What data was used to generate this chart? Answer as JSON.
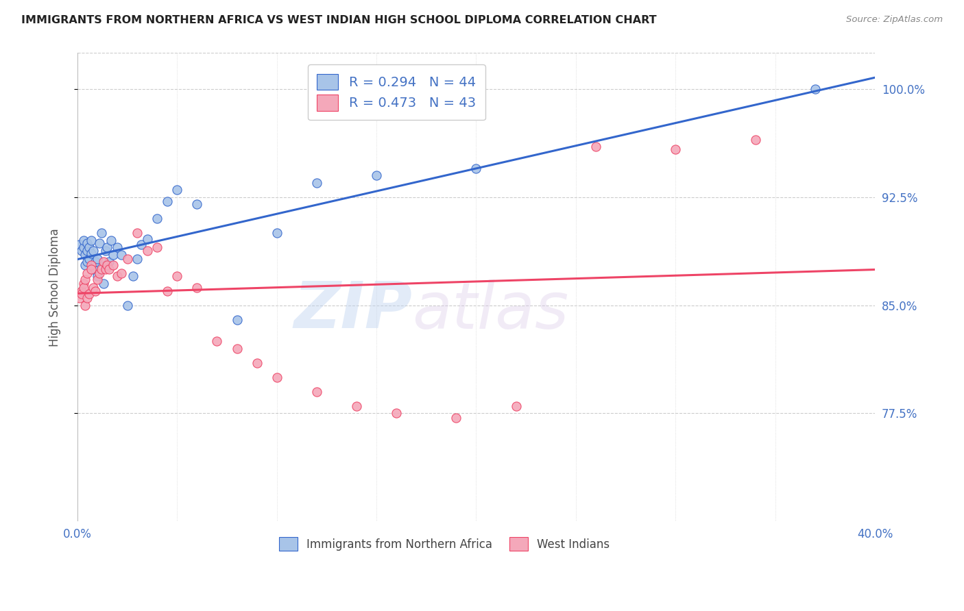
{
  "title": "IMMIGRANTS FROM NORTHERN AFRICA VS WEST INDIAN HIGH SCHOOL DIPLOMA CORRELATION CHART",
  "source": "Source: ZipAtlas.com",
  "ylabel": "High School Diploma",
  "xlim": [
    0.0,
    0.4
  ],
  "ylim": [
    0.7,
    1.025
  ],
  "yticks": [
    0.775,
    0.85,
    0.925,
    1.0
  ],
  "ytick_labels": [
    "77.5%",
    "85.0%",
    "92.5%",
    "100.0%"
  ],
  "xticks": [
    0.0,
    0.05,
    0.1,
    0.15,
    0.2,
    0.25,
    0.3,
    0.35,
    0.4
  ],
  "xtick_labels": [
    "0.0%",
    "",
    "",
    "",
    "",
    "",
    "",
    "",
    "40.0%"
  ],
  "blue_color": "#a8c4e8",
  "pink_color": "#f4a8ba",
  "blue_line_color": "#3366cc",
  "pink_line_color": "#ee4466",
  "watermark_zip": "ZIP",
  "watermark_atlas": "atlas",
  "blue_scatter_x": [
    0.001,
    0.002,
    0.003,
    0.003,
    0.004,
    0.004,
    0.005,
    0.005,
    0.005,
    0.006,
    0.006,
    0.007,
    0.007,
    0.008,
    0.008,
    0.009,
    0.01,
    0.01,
    0.011,
    0.012,
    0.013,
    0.014,
    0.014,
    0.015,
    0.016,
    0.017,
    0.018,
    0.02,
    0.022,
    0.025,
    0.028,
    0.03,
    0.032,
    0.035,
    0.04,
    0.045,
    0.05,
    0.06,
    0.08,
    0.1,
    0.12,
    0.15,
    0.2,
    0.37
  ],
  "blue_scatter_y": [
    0.892,
    0.888,
    0.89,
    0.895,
    0.878,
    0.885,
    0.88,
    0.888,
    0.893,
    0.882,
    0.89,
    0.886,
    0.895,
    0.875,
    0.888,
    0.88,
    0.87,
    0.882,
    0.893,
    0.9,
    0.865,
    0.888,
    0.878,
    0.89,
    0.88,
    0.895,
    0.885,
    0.89,
    0.885,
    0.85,
    0.87,
    0.882,
    0.892,
    0.896,
    0.91,
    0.922,
    0.93,
    0.92,
    0.84,
    0.9,
    0.935,
    0.94,
    0.945,
    1.0
  ],
  "pink_scatter_x": [
    0.001,
    0.002,
    0.002,
    0.003,
    0.003,
    0.004,
    0.004,
    0.005,
    0.005,
    0.006,
    0.007,
    0.007,
    0.008,
    0.009,
    0.01,
    0.011,
    0.012,
    0.013,
    0.014,
    0.015,
    0.016,
    0.018,
    0.02,
    0.022,
    0.025,
    0.03,
    0.035,
    0.04,
    0.045,
    0.05,
    0.06,
    0.07,
    0.08,
    0.09,
    0.1,
    0.12,
    0.14,
    0.16,
    0.19,
    0.22,
    0.26,
    0.3,
    0.34
  ],
  "pink_scatter_y": [
    0.855,
    0.86,
    0.858,
    0.865,
    0.862,
    0.85,
    0.868,
    0.855,
    0.872,
    0.858,
    0.878,
    0.875,
    0.862,
    0.86,
    0.868,
    0.872,
    0.875,
    0.88,
    0.875,
    0.878,
    0.875,
    0.878,
    0.87,
    0.872,
    0.882,
    0.9,
    0.888,
    0.89,
    0.86,
    0.87,
    0.862,
    0.825,
    0.82,
    0.81,
    0.8,
    0.79,
    0.78,
    0.775,
    0.772,
    0.78,
    0.96,
    0.958,
    0.965
  ],
  "legend_blue_label": "R = 0.294   N = 44",
  "legend_pink_label": "R = 0.473   N = 43",
  "legend_bottom_blue": "Immigrants from Northern Africa",
  "legend_bottom_pink": "West Indians",
  "title_color": "#222222",
  "axis_label_color": "#4472c4",
  "grid_color": "#cccccc"
}
